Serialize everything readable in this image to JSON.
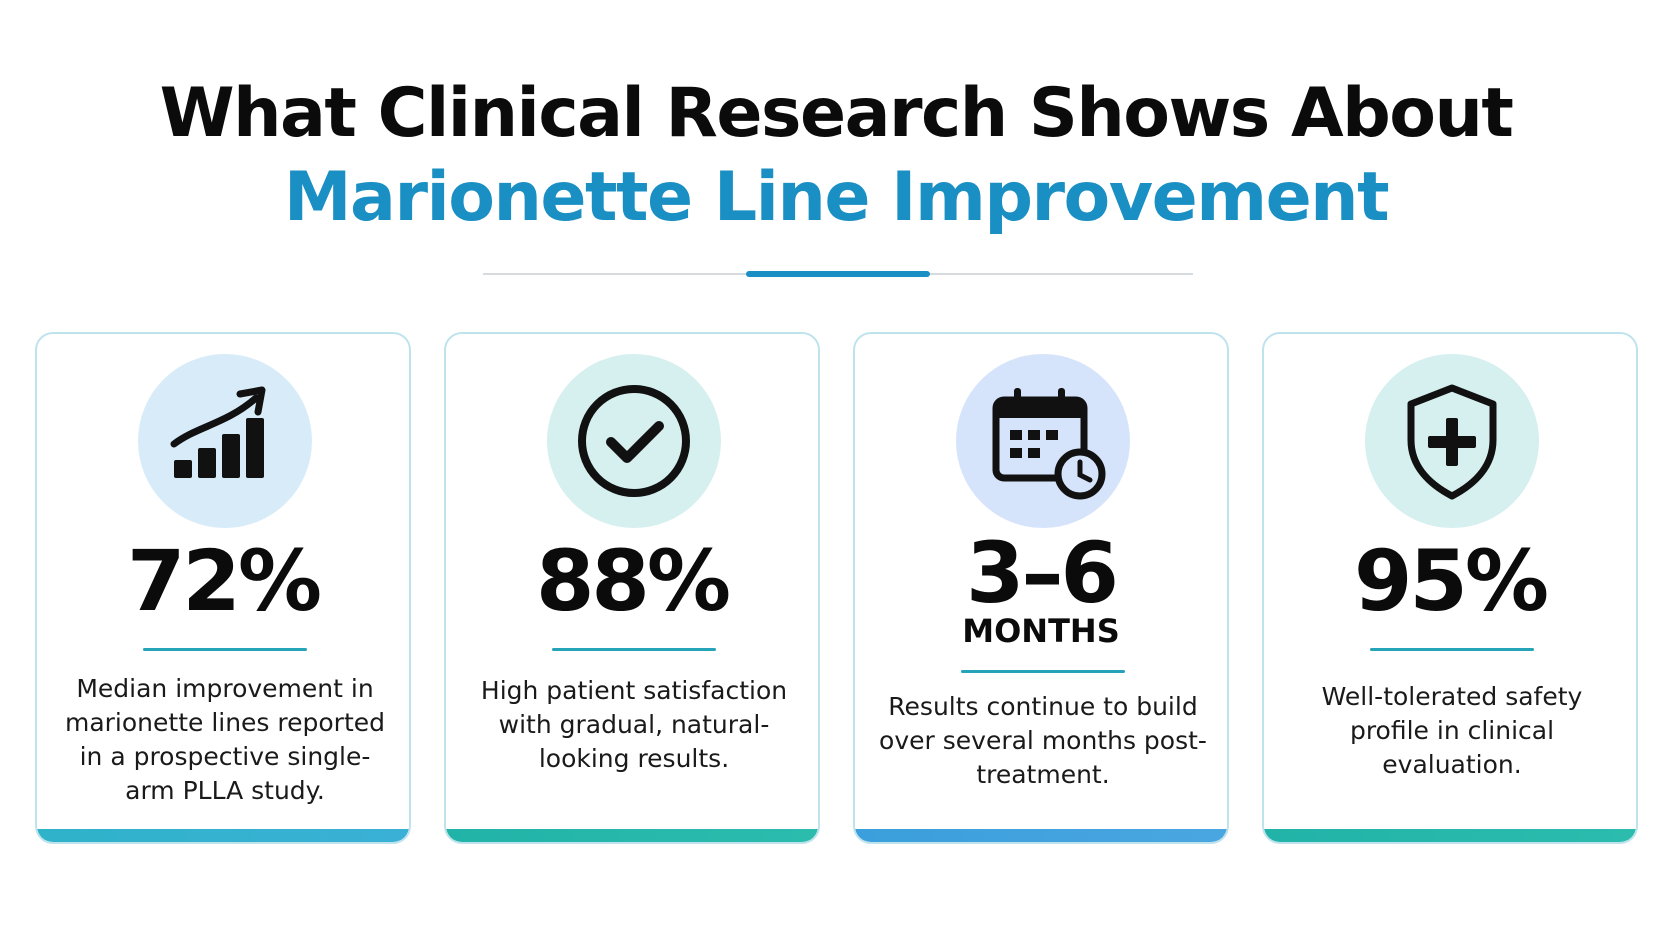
{
  "header": {
    "title_line1": "What Clinical Research Shows About",
    "title_line2": "Marionette Line Improvement"
  },
  "colors": {
    "accent_blue": "#1a8fc4",
    "accent_teal": "#25a3b8",
    "card_border": "#bfe3ec",
    "icon_bg_blue": "#d7ecf8",
    "icon_bg_teal": "#d6efef",
    "icon_bg_lavender": "#d6e4fb"
  },
  "cards": [
    {
      "icon": "growth-chart-icon",
      "stat": "72%",
      "unit": "",
      "description": "Median improvement in marionette lines reported in a prospective single-arm PLLA study."
    },
    {
      "icon": "check-circle-icon",
      "stat": "88%",
      "unit": "",
      "description": "High patient satisfaction with gradual, natural-looking results."
    },
    {
      "icon": "calendar-clock-icon",
      "stat": "3–6",
      "unit": "MONTHS",
      "description": "Results continue to build over several months post-treatment."
    },
    {
      "icon": "shield-plus-icon",
      "stat": "95%",
      "unit": "",
      "description": "Well-tolerated safety profile in clinical evaluation."
    }
  ]
}
